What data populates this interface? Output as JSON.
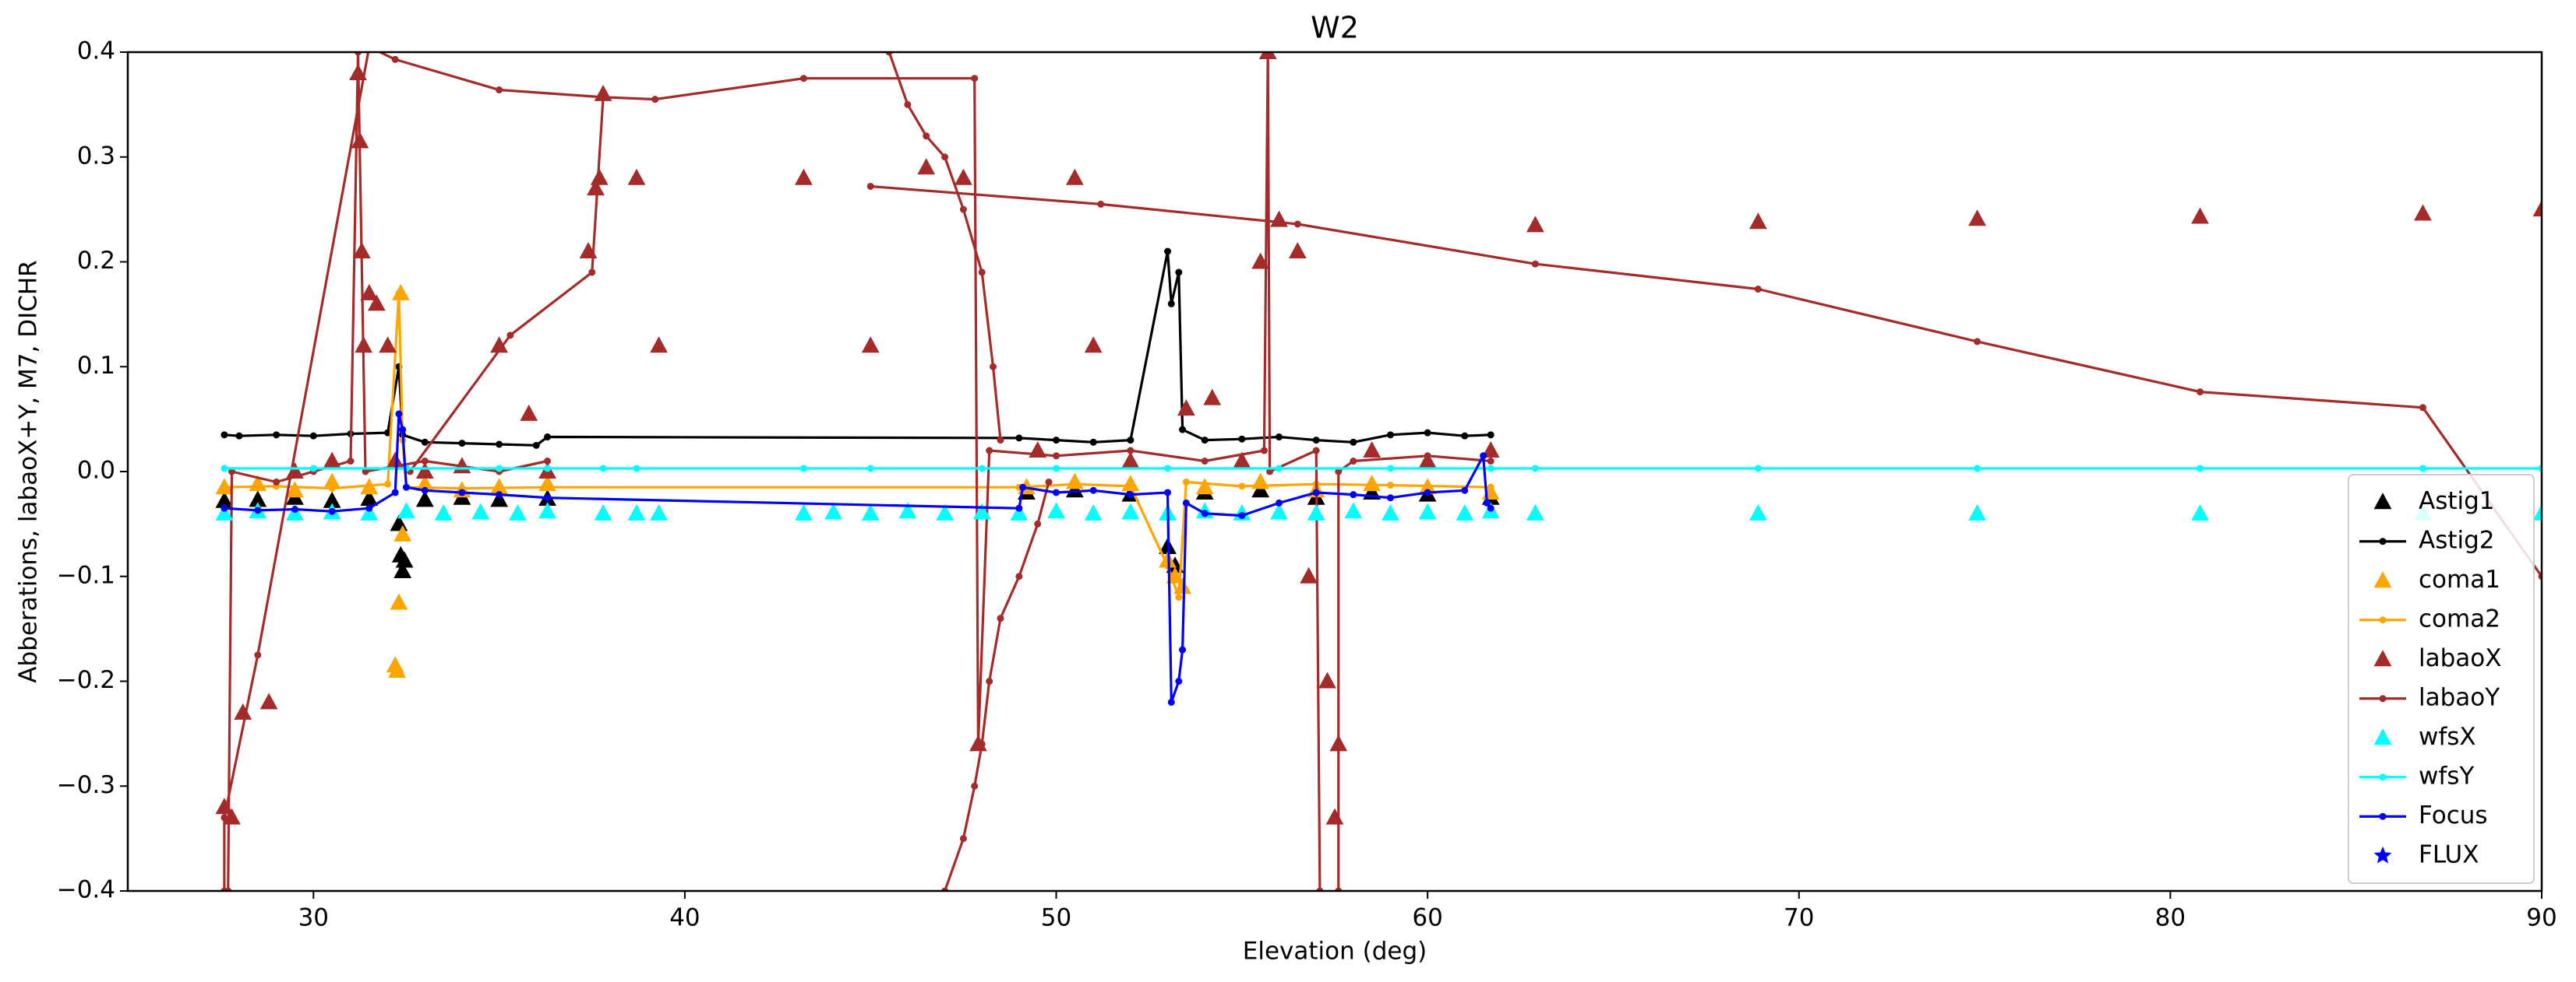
{
  "chart_data": {
    "type": "line",
    "title": "W2",
    "xlabel": "Elevation (deg)",
    "ylabel": "Abberations, labaoX+Y, M7, DICHR",
    "xlim": [
      25,
      90
    ],
    "xticks": [
      30,
      40,
      50,
      60,
      70,
      80,
      90
    ],
    "ylim": [
      -0.4,
      0.4
    ],
    "yticks": [
      {
        "value": -0.4,
        "label": "−0.4"
      },
      {
        "value": -0.3,
        "label": "−0.3"
      },
      {
        "value": -0.2,
        "label": "−0.2"
      },
      {
        "value": -0.1,
        "label": "−0.1"
      },
      {
        "value": 0,
        "label": "0.0"
      },
      0.1,
      0.2,
      0.3,
      0.4
    ],
    "legend": "lower right",
    "series": [
      {
        "name": "Astig1",
        "color": "#000000",
        "marker": "^",
        "linestyle": "none",
        "x": [
          27.6,
          28.5,
          29.5,
          30.5,
          31.5,
          32.3,
          32.35,
          32.4,
          32.45,
          33,
          34,
          35,
          36.3,
          49.2,
          50.5,
          52,
          53,
          53.2,
          54,
          55.5,
          57,
          58.5,
          60,
          61.7
        ],
        "values": [
          -0.028,
          -0.027,
          -0.025,
          -0.028,
          -0.026,
          -0.05,
          -0.08,
          -0.095,
          -0.085,
          -0.027,
          -0.025,
          -0.027,
          -0.026,
          -0.02,
          -0.018,
          -0.022,
          -0.072,
          -0.09,
          -0.02,
          -0.018,
          -0.025,
          -0.02,
          -0.022,
          -0.025
        ]
      },
      {
        "name": "Astig2",
        "color": "#000000",
        "marker": "o",
        "linestyle": "solid",
        "x": [
          27.6,
          28,
          29,
          30,
          31,
          32,
          32.3,
          32.4,
          33,
          34,
          35,
          36,
          36.3,
          49,
          50,
          51,
          52,
          53,
          53.1,
          53.3,
          53.4,
          54,
          55,
          56,
          57,
          58,
          59,
          60,
          61,
          61.7
        ],
        "values": [
          0.035,
          0.034,
          0.035,
          0.034,
          0.036,
          0.037,
          0.1,
          0.035,
          0.028,
          0.027,
          0.026,
          0.025,
          0.033,
          0.032,
          0.03,
          0.028,
          0.03,
          0.21,
          0.16,
          0.19,
          0.04,
          0.03,
          0.031,
          0.033,
          0.03,
          0.028,
          0.035,
          0.037,
          0.034,
          0.035
        ]
      },
      {
        "name": "coma1",
        "color": "#ffa500",
        "marker": "^",
        "linestyle": "none",
        "x": [
          27.6,
          28.5,
          29.5,
          30.5,
          31.5,
          32.2,
          32.25,
          32.3,
          32.35,
          32.4,
          33,
          34,
          35,
          36.3,
          49.2,
          50.5,
          52,
          53,
          53.2,
          53.4,
          54,
          55.5,
          57,
          58.5,
          60,
          61.7
        ],
        "values": [
          -0.015,
          -0.012,
          -0.018,
          -0.01,
          -0.015,
          -0.185,
          -0.19,
          -0.125,
          0.17,
          -0.06,
          -0.012,
          -0.018,
          -0.015,
          -0.012,
          -0.015,
          -0.01,
          -0.012,
          -0.085,
          -0.1,
          -0.11,
          -0.015,
          -0.01,
          -0.018,
          -0.012,
          -0.015,
          -0.02
        ]
      },
      {
        "name": "coma2",
        "color": "#ffa500",
        "marker": "o",
        "linestyle": "solid",
        "x": [
          27.6,
          29,
          30.5,
          32,
          32.3,
          32.4,
          32.5,
          34,
          36.3,
          49,
          50.5,
          52,
          53,
          53.3,
          53.5,
          55,
          57,
          59,
          61.7
        ],
        "values": [
          -0.015,
          -0.014,
          -0.016,
          -0.012,
          0.17,
          0.03,
          -0.015,
          -0.016,
          -0.015,
          -0.015,
          -0.012,
          -0.014,
          -0.09,
          -0.12,
          -0.01,
          -0.014,
          -0.012,
          -0.013,
          -0.015
        ]
      },
      {
        "name": "labaoX",
        "color": "#a52a2a",
        "marker": "^",
        "linestyle": "none",
        "x": [
          27.6,
          27.8,
          28.1,
          28.8,
          29.5,
          30.5,
          31.2,
          31.25,
          31.3,
          31.35,
          31.5,
          31.7,
          32,
          32.2,
          33,
          34,
          35,
          35.8,
          36.3,
          37.4,
          37.6,
          37.7,
          37.8,
          38.7,
          39.3,
          43.2,
          45,
          46.5,
          47.5,
          47.9,
          49.5,
          50.5,
          51,
          52,
          53.5,
          54.2,
          55,
          55.5,
          55.7,
          56,
          56.5,
          56.8,
          57.3,
          57.5,
          57.6,
          58.5,
          60,
          61.7,
          62.9,
          68.9,
          74.8,
          80.8,
          86.8,
          90
        ],
        "values": [
          -0.32,
          -0.33,
          -0.23,
          -0.22,
          0.0,
          0.01,
          0.38,
          0.315,
          0.21,
          0.12,
          0.17,
          0.16,
          0.12,
          0.01,
          0.0,
          0.005,
          0.12,
          0.055,
          0.0,
          0.21,
          0.27,
          0.28,
          0.36,
          0.28,
          0.12,
          0.28,
          0.12,
          0.29,
          0.28,
          -0.26,
          0.02,
          0.28,
          0.12,
          0.01,
          0.06,
          0.07,
          0.01,
          0.2,
          0.4,
          0.24,
          0.21,
          -0.1,
          -0.2,
          -0.33,
          -0.26,
          0.02,
          0.01,
          0.02,
          0.235,
          0.238,
          0.241,
          0.243,
          0.246,
          0.25
        ]
      },
      {
        "name": "labaoY",
        "color": "#a52a2a",
        "marker": "o",
        "linestyle": "solid",
        "x": [
          27.6,
          27.6,
          28.5,
          31.5,
          32.2,
          35,
          37.8,
          39.2,
          43.2,
          47.8,
          47.9,
          48.2,
          50,
          52,
          54,
          55.6,
          55.7,
          55.75,
          57,
          57.1,
          null,
          57.6,
          57.6,
          58,
          60,
          61.7,
          null,
          45.5,
          46,
          46.5,
          47,
          47.5,
          48,
          48.3,
          48.5,
          null,
          47,
          47.5,
          47.8,
          48,
          48.2,
          48.5,
          49,
          49.5,
          49.8,
          null,
          32.6,
          35.3,
          37.5,
          37.8,
          null,
          45,
          51.2,
          56.5,
          62.9,
          68.9,
          74.8,
          80.8,
          86.8,
          90,
          null,
          27.7,
          27.8,
          29,
          30,
          31,
          31.2,
          31.4,
          33,
          35,
          36.3
        ],
        "values": [
          -0.4,
          -0.33,
          -0.175,
          0.405,
          0.393,
          0.364,
          0.357,
          0.355,
          0.375,
          0.375,
          -0.26,
          0.02,
          0.015,
          0.02,
          0.01,
          0.02,
          0.4,
          0.0,
          0.02,
          -0.4,
          null,
          -0.4,
          0.0,
          0.01,
          0.015,
          0.01,
          null,
          0.4,
          0.35,
          0.32,
          0.3,
          0.25,
          0.19,
          0.1,
          0.03,
          null,
          -0.4,
          -0.35,
          -0.3,
          -0.26,
          -0.2,
          -0.14,
          -0.1,
          -0.05,
          -0.01,
          null,
          0.0,
          0.13,
          0.19,
          0.357,
          null,
          0.272,
          0.255,
          0.236,
          0.198,
          0.174,
          0.124,
          0.076,
          0.061,
          -0.1,
          null,
          -0.4,
          0.0,
          -0.01,
          0.0,
          0.01,
          0.4,
          0.0,
          0.01,
          0.0,
          0.01
        ]
      },
      {
        "name": "wfsX",
        "color": "#00ffff",
        "marker": "^",
        "linestyle": "none",
        "x": [
          27.6,
          28.5,
          29.5,
          30.5,
          31.5,
          32.5,
          33.5,
          34.5,
          35.5,
          36.3,
          37.8,
          38.7,
          39.3,
          43.2,
          44,
          45,
          46,
          47,
          48,
          49,
          50,
          51,
          52,
          53,
          54,
          55,
          56,
          57,
          58,
          59,
          60,
          61,
          61.7,
          62.9,
          68.9,
          74.8,
          80.8,
          86.8,
          90
        ],
        "values": [
          -0.04,
          -0.038,
          -0.04,
          -0.039,
          -0.04,
          -0.038,
          -0.04,
          -0.039,
          -0.04,
          -0.038,
          -0.04,
          -0.04,
          -0.04,
          -0.04,
          -0.039,
          -0.04,
          -0.038,
          -0.04,
          -0.039,
          -0.04,
          -0.038,
          -0.04,
          -0.039,
          -0.04,
          -0.038,
          -0.04,
          -0.039,
          -0.04,
          -0.038,
          -0.04,
          -0.039,
          -0.04,
          -0.038,
          -0.04,
          -0.04,
          -0.04,
          -0.04,
          -0.04,
          -0.04
        ]
      },
      {
        "name": "wfsY",
        "color": "#00ffff",
        "marker": "o",
        "linestyle": "solid",
        "x": [
          27.6,
          30,
          32.5,
          35,
          36.3,
          37.8,
          38.7,
          43.2,
          45,
          48,
          50,
          53,
          56,
          59,
          61.7,
          62.9,
          68.9,
          74.8,
          80.8,
          86.8,
          90
        ],
        "values": [
          0.003,
          0.003,
          0.003,
          0.003,
          0.003,
          0.003,
          0.003,
          0.003,
          0.003,
          0.003,
          0.003,
          0.003,
          0.003,
          0.003,
          0.003,
          0.003,
          0.003,
          0.003,
          0.003,
          0.003,
          0.003
        ]
      },
      {
        "name": "Focus",
        "color": "#0000ff",
        "marker": "o",
        "linestyle": "solid",
        "x": [
          27.6,
          28.5,
          29.5,
          30.5,
          31.5,
          32.2,
          32.3,
          32.4,
          32.5,
          33,
          34,
          35,
          36.3,
          49,
          49.1,
          50,
          51,
          52,
          53,
          53.1,
          53.3,
          53.4,
          53.5,
          54,
          55,
          56,
          57,
          58,
          59,
          60,
          61,
          61.5,
          61.6,
          61.7
        ],
        "values": [
          -0.035,
          -0.037,
          -0.036,
          -0.038,
          -0.035,
          -0.02,
          0.055,
          0.04,
          -0.015,
          -0.018,
          -0.02,
          -0.022,
          -0.025,
          -0.035,
          -0.015,
          -0.02,
          -0.018,
          -0.022,
          -0.02,
          -0.22,
          -0.2,
          -0.17,
          -0.03,
          -0.04,
          -0.042,
          -0.03,
          -0.02,
          -0.022,
          -0.025,
          -0.02,
          -0.018,
          0.015,
          -0.03,
          -0.035
        ]
      },
      {
        "name": "FLUX",
        "color": "#0000ff",
        "marker": "*",
        "linestyle": "none",
        "x": [],
        "values": []
      }
    ]
  }
}
